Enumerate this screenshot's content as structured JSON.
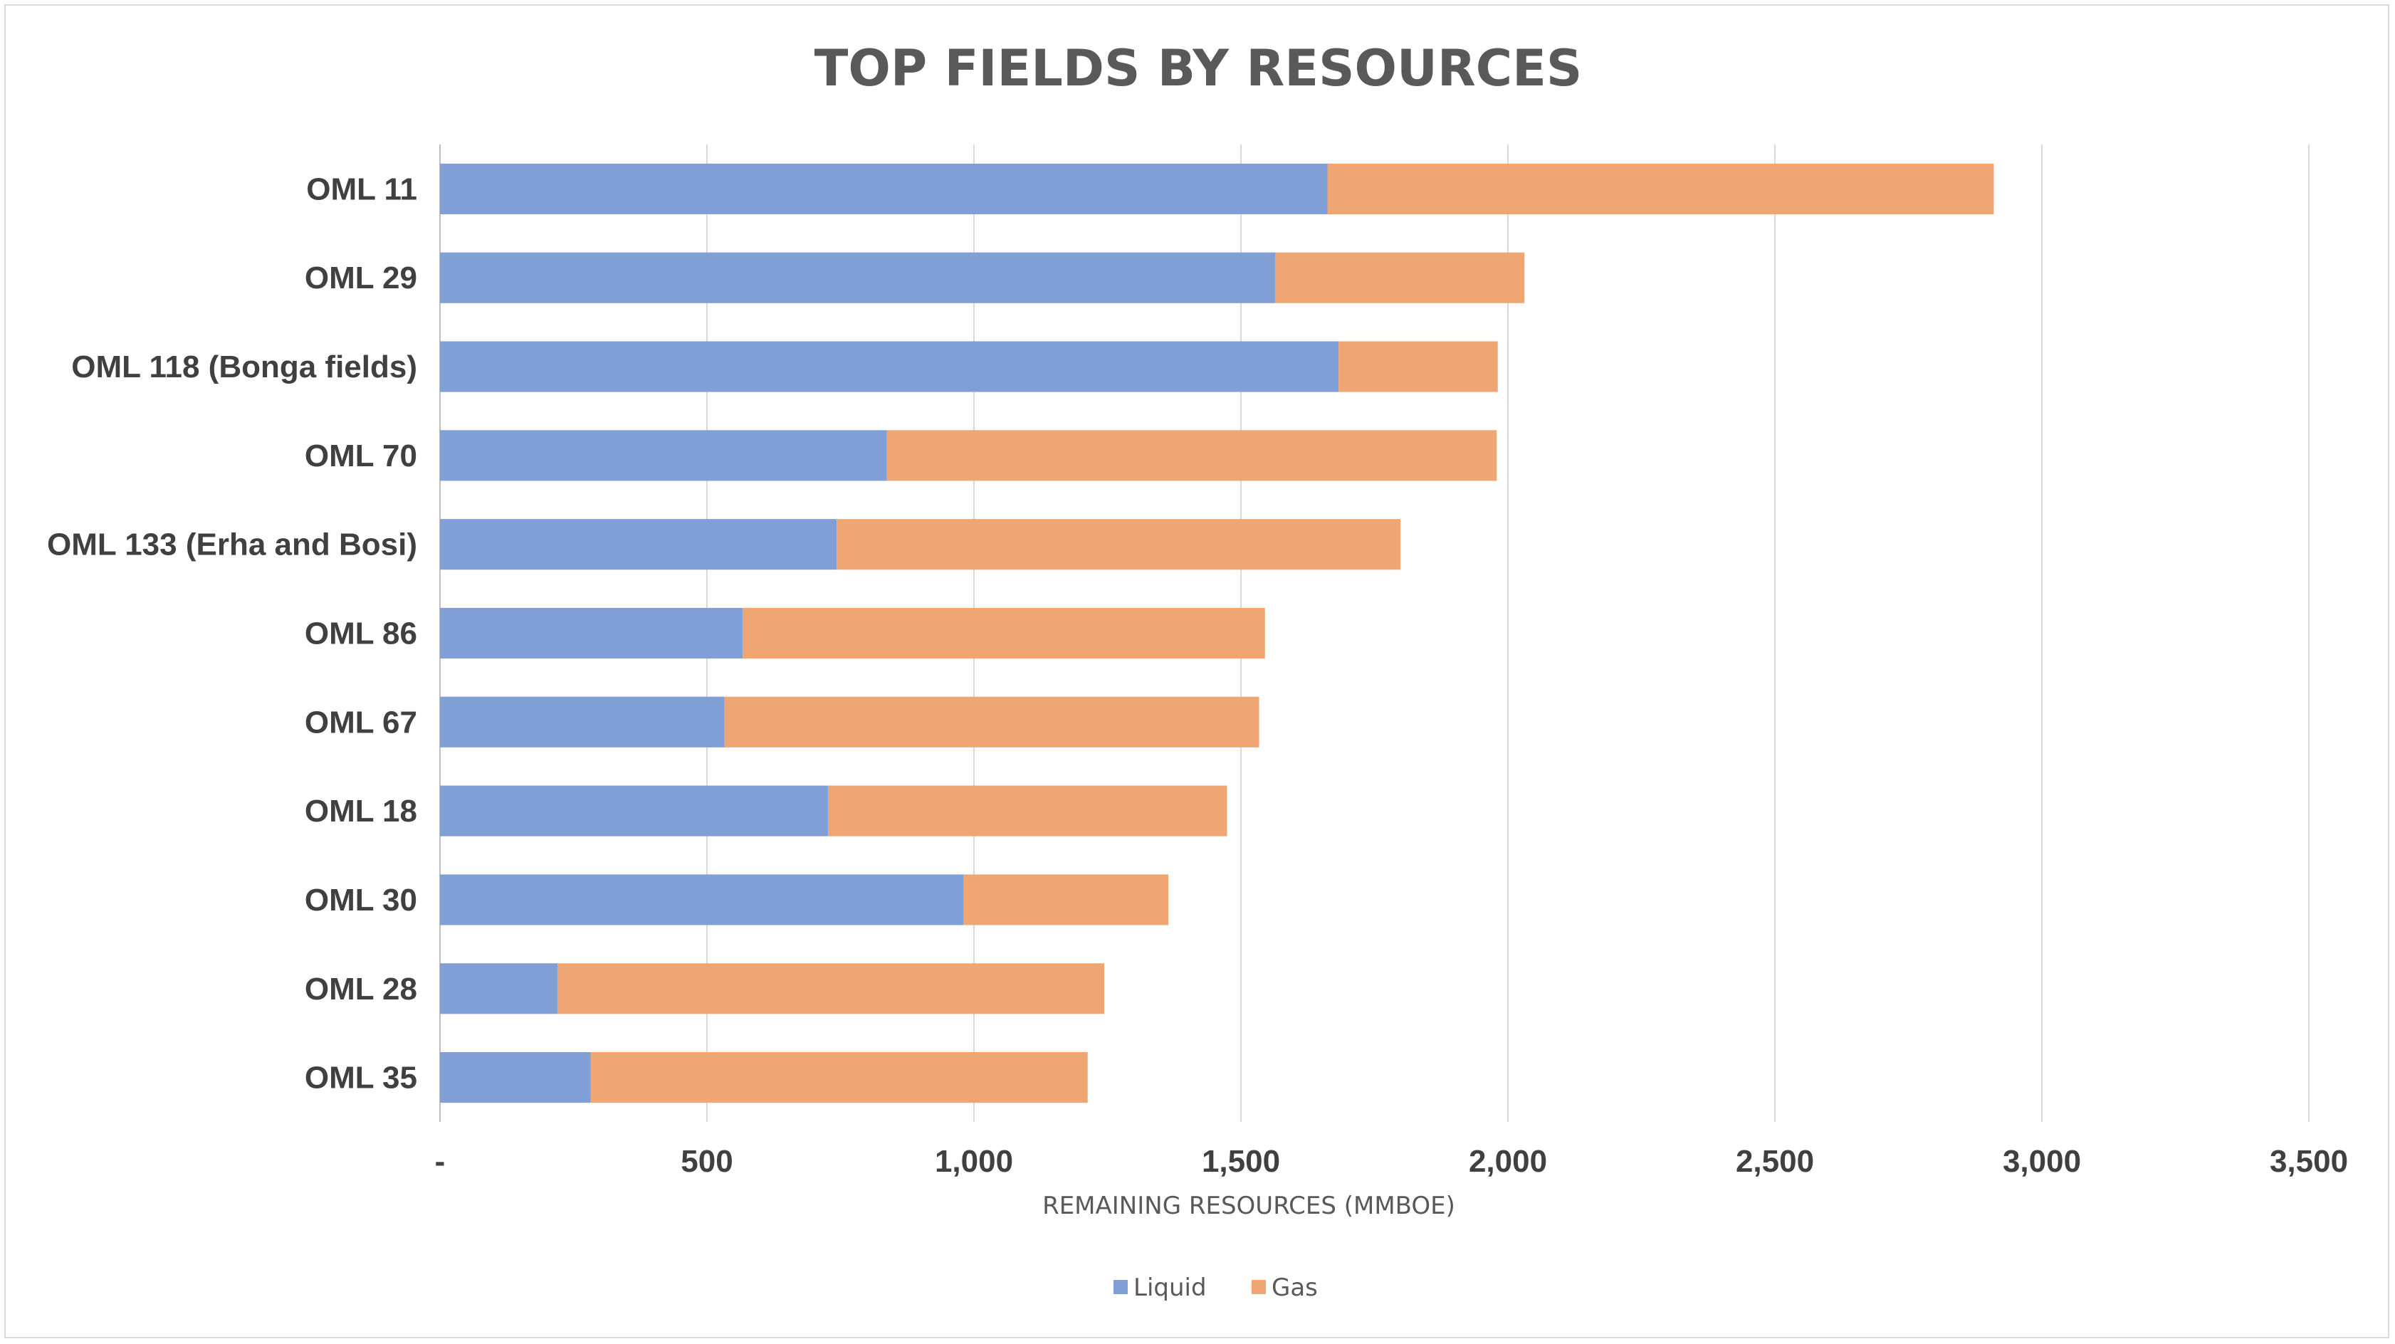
{
  "chart_data": {
    "type": "bar",
    "orientation": "horizontal",
    "stacked": true,
    "title": "TOP FIELDS BY RESOURCES",
    "xlabel": "REMAINING RESOURCES (MMBOE)",
    "ylabel": "",
    "xlim": [
      0,
      3500
    ],
    "x_ticks": [
      0,
      500,
      1000,
      1500,
      2000,
      2500,
      3000,
      3500
    ],
    "x_tick_labels": [
      "-",
      "500",
      "1,000",
      "1,500",
      "2,000",
      "2,500",
      "3,000",
      "3,500"
    ],
    "grid": "vertical",
    "legend_position": "bottom",
    "categories": [
      "OML 11",
      "OML 29",
      "OML 118 (Bonga fields)",
      "OML 70",
      "OML 133 (Erha and Bosi)",
      "OML 86",
      "OML 67",
      "OML 18",
      "OML 30",
      "OML 28",
      "OML 35"
    ],
    "series": [
      {
        "name": "Liquid",
        "color": "#7f9fd6",
        "values": [
          1662,
          1564,
          1683,
          837,
          743,
          567,
          533,
          727,
          980,
          220,
          282
        ]
      },
      {
        "name": "Gas",
        "color": "#f0a672",
        "values": [
          1248,
          467,
          298,
          1142,
          1056,
          978,
          1001,
          747,
          384,
          1024,
          931
        ]
      }
    ]
  }
}
